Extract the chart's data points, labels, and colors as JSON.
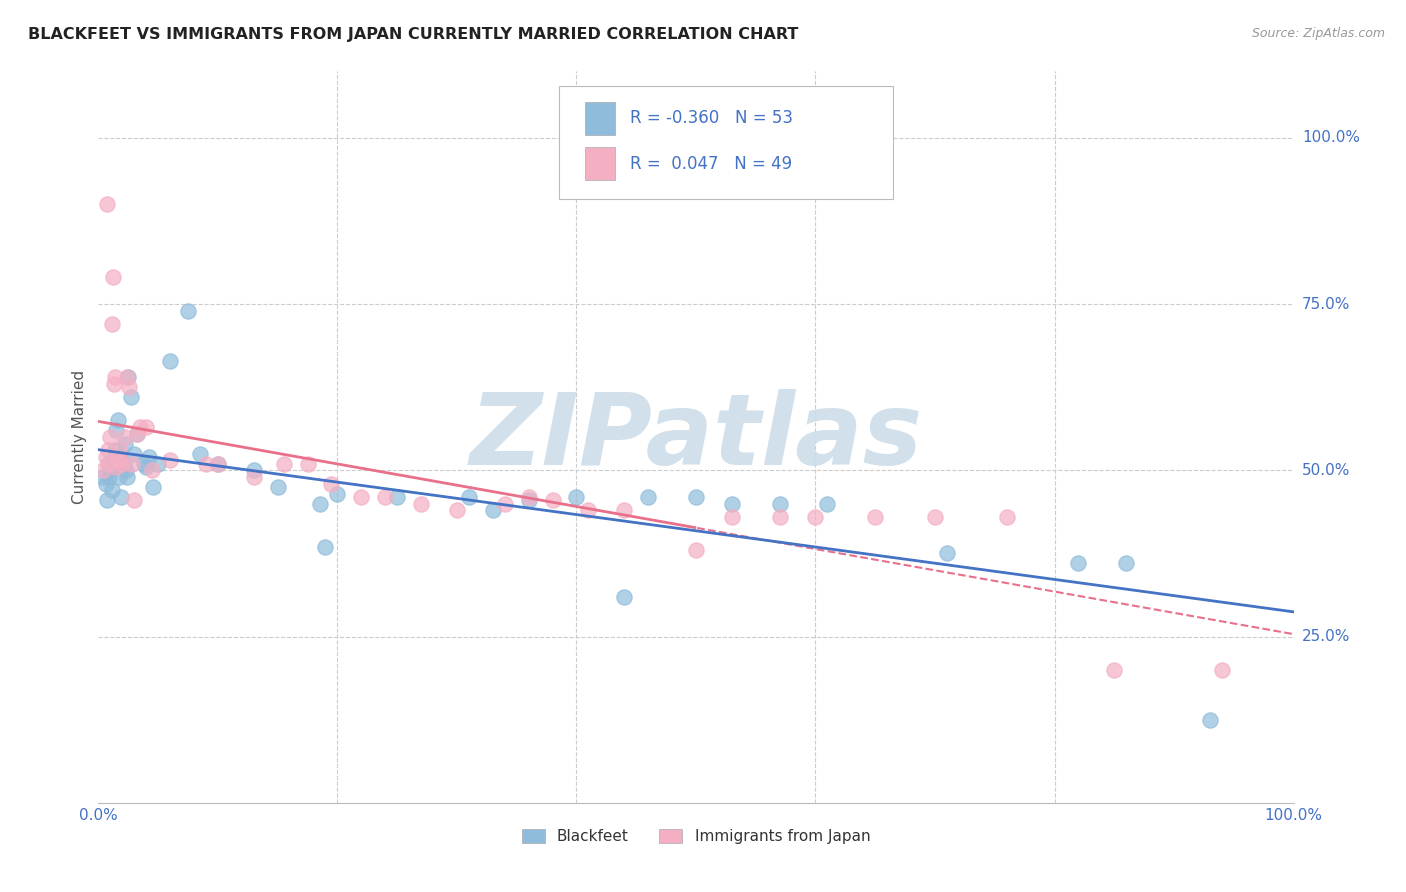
{
  "title": "BLACKFEET VS IMMIGRANTS FROM JAPAN CURRENTLY MARRIED CORRELATION CHART",
  "source": "Source: ZipAtlas.com",
  "ylabel": "Currently Married",
  "ylabel_right_labels": [
    "100.0%",
    "75.0%",
    "50.0%",
    "25.0%"
  ],
  "ylabel_right_positions": [
    1.0,
    0.75,
    0.5,
    0.25
  ],
  "background_color": "#ffffff",
  "grid_color": "#cccccc",
  "watermark_text": "ZIPatlas",
  "watermark_color": "#ccdde8",
  "blue_R": -0.36,
  "blue_N": 53,
  "pink_R": 0.047,
  "pink_N": 49,
  "blue_color": "#8fbcdb",
  "pink_color": "#f4afc3",
  "blue_line_color": "#4472c4",
  "pink_line_color": "#e8708a",
  "blue_x": [
    0.004,
    0.006,
    0.007,
    0.008,
    0.009,
    0.01,
    0.011,
    0.012,
    0.013,
    0.014,
    0.015,
    0.016,
    0.017,
    0.018,
    0.019,
    0.02,
    0.021,
    0.022,
    0.023,
    0.024,
    0.025,
    0.027,
    0.03,
    0.032,
    0.038,
    0.04,
    0.042,
    0.046,
    0.05,
    0.06,
    0.075,
    0.085,
    0.1,
    0.13,
    0.15,
    0.185,
    0.19,
    0.2,
    0.25,
    0.31,
    0.33,
    0.36,
    0.4,
    0.44,
    0.46,
    0.5,
    0.53,
    0.57,
    0.61,
    0.71,
    0.82,
    0.86,
    0.93
  ],
  "blue_y": [
    0.49,
    0.48,
    0.455,
    0.51,
    0.49,
    0.5,
    0.47,
    0.515,
    0.505,
    0.53,
    0.56,
    0.575,
    0.49,
    0.52,
    0.46,
    0.505,
    0.51,
    0.54,
    0.5,
    0.49,
    0.64,
    0.61,
    0.525,
    0.555,
    0.51,
    0.505,
    0.52,
    0.475,
    0.51,
    0.665,
    0.74,
    0.525,
    0.51,
    0.5,
    0.475,
    0.45,
    0.385,
    0.465,
    0.46,
    0.46,
    0.44,
    0.455,
    0.46,
    0.31,
    0.46,
    0.46,
    0.45,
    0.45,
    0.45,
    0.375,
    0.36,
    0.36,
    0.125
  ],
  "pink_x": [
    0.004,
    0.006,
    0.007,
    0.008,
    0.009,
    0.01,
    0.011,
    0.012,
    0.013,
    0.014,
    0.015,
    0.016,
    0.017,
    0.018,
    0.02,
    0.022,
    0.024,
    0.026,
    0.028,
    0.03,
    0.032,
    0.035,
    0.04,
    0.045,
    0.06,
    0.09,
    0.1,
    0.13,
    0.155,
    0.175,
    0.195,
    0.22,
    0.24,
    0.27,
    0.3,
    0.34,
    0.36,
    0.38,
    0.41,
    0.44,
    0.5,
    0.53,
    0.57,
    0.6,
    0.65,
    0.7,
    0.76,
    0.85,
    0.94
  ],
  "pink_y": [
    0.5,
    0.52,
    0.9,
    0.53,
    0.51,
    0.55,
    0.72,
    0.79,
    0.63,
    0.64,
    0.505,
    0.515,
    0.53,
    0.515,
    0.51,
    0.55,
    0.64,
    0.625,
    0.51,
    0.455,
    0.555,
    0.565,
    0.565,
    0.5,
    0.515,
    0.51,
    0.51,
    0.49,
    0.51,
    0.51,
    0.48,
    0.46,
    0.46,
    0.45,
    0.44,
    0.45,
    0.46,
    0.455,
    0.44,
    0.44,
    0.38,
    0.43,
    0.43,
    0.43,
    0.43,
    0.43,
    0.43,
    0.2,
    0.2
  ]
}
